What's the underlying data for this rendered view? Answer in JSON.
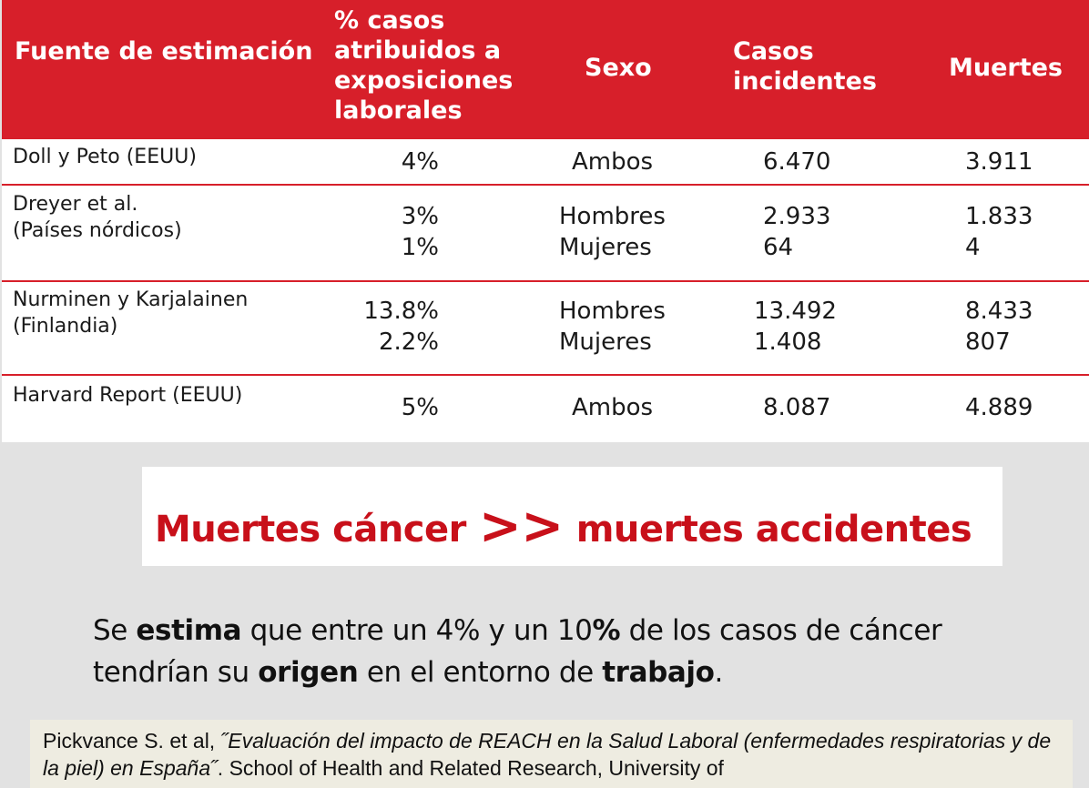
{
  "table": {
    "headers": {
      "fuente": "Fuente de estimación",
      "pct": [
        "% casos",
        "atribuidos a",
        "exposiciones",
        "laborales"
      ],
      "sexo": "Sexo",
      "casos": [
        "Casos",
        "incidentes"
      ],
      "muertes": "Muertes"
    },
    "rows": [
      {
        "fuente": [
          "Doll y Peto (EEUU)"
        ],
        "pct": [
          "4%"
        ],
        "sexo": [
          "Ambos"
        ],
        "casos": [
          "6.470"
        ],
        "muertes": [
          "3.911"
        ]
      },
      {
        "fuente": [
          "Dreyer et al.",
          "(Países nórdicos)"
        ],
        "pct": [
          "3%",
          "1%"
        ],
        "sexo": [
          "Hombres",
          "Mujeres"
        ],
        "casos": [
          "2.933",
          "64"
        ],
        "muertes": [
          "1.833",
          "4"
        ]
      },
      {
        "fuente": [
          "Nurminen y Karjalainen",
          "(Finlandia)"
        ],
        "pct": [
          "13.8%",
          "2.2%"
        ],
        "sexo": [
          "Hombres",
          "Mujeres"
        ],
        "casos": [
          "13.492",
          "1.408"
        ],
        "muertes": [
          "8.433",
          "807"
        ]
      },
      {
        "fuente": [
          "Harvard Report (EEUU)"
        ],
        "pct": [
          "5%"
        ],
        "sexo": [
          "Ambos"
        ],
        "casos": [
          "8.087"
        ],
        "muertes": [
          "4.889"
        ]
      }
    ]
  },
  "callout": {
    "left": "Muertes cáncer",
    "arrows": ">>",
    "right": "muertes accidentes"
  },
  "statement": {
    "p1": "Se ",
    "b1": "estima",
    "p2": " que entre un 4% y un 10",
    "b2": "%",
    "p3": " de los casos de cáncer tendrían su  ",
    "b3": "origen",
    "p4": " en el entorno de ",
    "b4": "trabajo",
    "p5": "."
  },
  "citation": {
    "authors": "Pickvance S. et al, ",
    "title": "˝Evaluación del impacto de REACH en la Salud Laboral (enfermedades respiratorias y de la piel) en España˝",
    "rest": ". School of Health and Related Research, University of"
  },
  "colors": {
    "header_red": "#d71f2a",
    "callout_red": "#c8101a",
    "citation_bg": "#eeece1",
    "page_bg": "#e2e2e2"
  }
}
